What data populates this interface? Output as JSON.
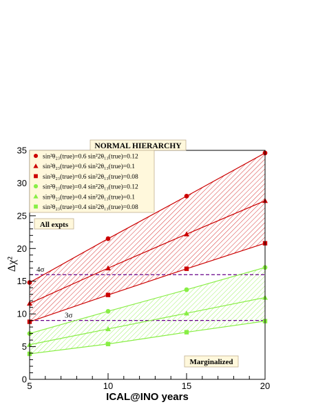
{
  "chart_data": {
    "type": "line",
    "title": "NORMAL HIERARCHY",
    "xlabel": "ICAL@INO years",
    "ylabel": "Δχ²",
    "xlim": [
      5,
      20
    ],
    "ylim": [
      0,
      35
    ],
    "x_ticks": [
      5,
      10,
      15,
      20
    ],
    "y_ticks": [
      0,
      5,
      10,
      15,
      20,
      25,
      30,
      35
    ],
    "grid": false,
    "legend_position": "top-left",
    "x": [
      5,
      10,
      15,
      20
    ],
    "series": [
      {
        "name": "sin²θ₂₃(true)=0.6   sin²2θ₁₃(true)=0.12",
        "color": "#cc0000",
        "marker": "circle",
        "values": [
          14.8,
          21.5,
          28.0,
          34.6
        ]
      },
      {
        "name": "sin²θ₂₃(true)=0.6   sin²2θ₁₃(true)=0.1",
        "color": "#cc0000",
        "marker": "triangle",
        "values": [
          11.6,
          17.0,
          22.2,
          27.3
        ]
      },
      {
        "name": "sin²θ₂₃(true)=0.6   sin²2θ₁₃(true)=0.08",
        "color": "#cc0000",
        "marker": "square",
        "values": [
          8.8,
          12.9,
          16.9,
          20.8
        ]
      },
      {
        "name": "sin²θ₂₃(true)=0.4   sin²2θ₁₃(true)=0.12",
        "color": "#88ee44",
        "marker": "circle",
        "values": [
          7.0,
          10.4,
          13.7,
          17.1
        ]
      },
      {
        "name": "sin²θ₂₃(true)=0.4   sin²2θ₁₃(true)=0.1",
        "color": "#88ee44",
        "marker": "triangle",
        "values": [
          5.3,
          7.7,
          10.1,
          12.5
        ]
      },
      {
        "name": "sin²θ₂₃(true)=0.4   sin²2θ₁₃(true)=0.08",
        "color": "#88ee44",
        "marker": "square",
        "values": [
          3.9,
          5.4,
          7.2,
          8.9
        ]
      }
    ],
    "bands": [
      {
        "upper_series": 0,
        "lower_series": 2,
        "color": "#cc0000",
        "hatch": "diagonal"
      },
      {
        "upper_series": 3,
        "lower_series": 5,
        "color": "#88ee44",
        "hatch": "diagonal"
      }
    ],
    "reference_lines": [
      {
        "y": 16,
        "label": "4σ",
        "color": "#660088",
        "style": "dashed"
      },
      {
        "y": 9,
        "label": "3σ",
        "color": "#660088",
        "style": "dashed"
      }
    ],
    "annotations": [
      {
        "text": "All expts",
        "anchor": "upper-left"
      },
      {
        "text": "Marginalized",
        "anchor": "lower-right"
      }
    ]
  }
}
